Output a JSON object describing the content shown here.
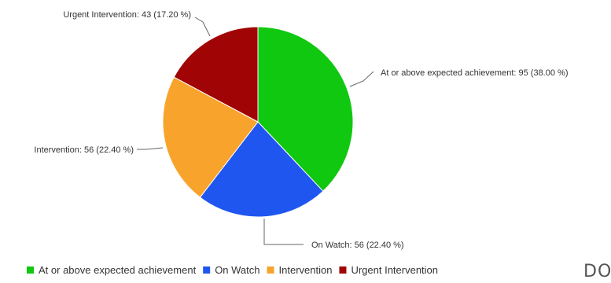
{
  "chart_data": {
    "type": "pie",
    "title": "",
    "slices": [
      {
        "name": "At or above expected achievement",
        "value": 95,
        "percent": 38.0,
        "label": "At or above expected achievement: 95 (38.00 %)",
        "color": "#0fc80f"
      },
      {
        "name": "On Watch",
        "value": 56,
        "percent": 22.4,
        "label": "On Watch: 56 (22.40 %)",
        "color": "#1f56f0"
      },
      {
        "name": "Intervention",
        "value": 56,
        "percent": 22.4,
        "label": "Intervention: 56 (22.40 %)",
        "color": "#f8a42c"
      },
      {
        "name": "Urgent Intervention",
        "value": 43,
        "percent": 17.2,
        "label": "Urgent Intervention: 43 (17.20 %)",
        "color": "#a10405"
      }
    ],
    "legend": {
      "position": "bottom-left",
      "items": [
        "At or above expected achievement",
        "On Watch",
        "Intervention",
        "Urgent Intervention"
      ]
    }
  },
  "watermark": {
    "text": "DO"
  }
}
